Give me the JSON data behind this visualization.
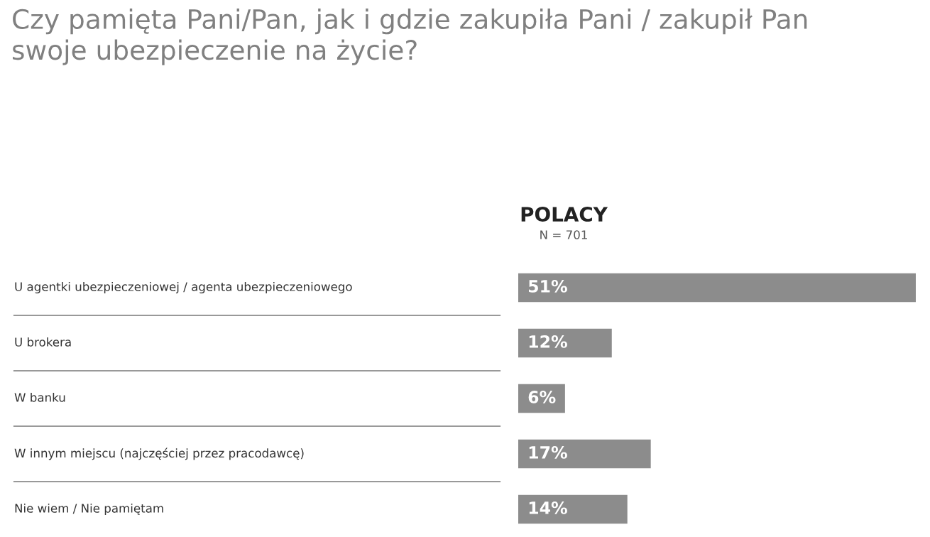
{
  "chart_data": {
    "type": "bar",
    "orientation": "horizontal",
    "title": "Czy pamięta Pani/Pan, jak i gdzie zakupiła Pani / zakupił Pan\nswoje ubezpieczenie na życie?",
    "categories": [
      "U agentki ubezpieczeniowej / agenta ubezpieczeniowego",
      "U brokera",
      "W banku",
      "W innym miejscu (najczęściej przez pracodawcę)",
      "Nie wiem / Nie pamiętam"
    ],
    "series": [
      {
        "name": "POLACY",
        "color": "#8c8c8c",
        "values": [
          51,
          12,
          6,
          17,
          14
        ],
        "value_labels": [
          "51%",
          "12%",
          "6%",
          "17%",
          "14%"
        ]
      }
    ],
    "annotations": [
      "N = 701"
    ],
    "legend": false
  }
}
